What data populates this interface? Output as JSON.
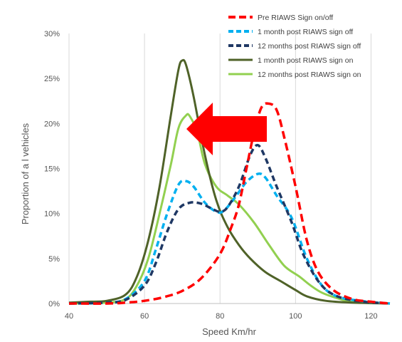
{
  "chart_data": {
    "type": "line",
    "title": "",
    "xlabel": "Speed Km/hr",
    "ylabel": "Proportion of a l vehicles",
    "xlim": [
      40,
      125
    ],
    "ylim": [
      0,
      30
    ],
    "x_ticks": [
      40,
      60,
      80,
      100,
      120
    ],
    "y_ticks": [
      0,
      5,
      10,
      15,
      20,
      25,
      30
    ],
    "y_tick_suffix": "%",
    "grid": "vertical",
    "legend_position": "top-right",
    "annotation": "red-arrow-pointing-left",
    "series": [
      {
        "name": "Pre RIAWS Sign on/off",
        "color": "#ff0000",
        "dash": "dashed",
        "points": [
          [
            40,
            0
          ],
          [
            50,
            0
          ],
          [
            55,
            0.1
          ],
          [
            60,
            0.3
          ],
          [
            65,
            0.7
          ],
          [
            70,
            1.4
          ],
          [
            75,
            2.8
          ],
          [
            80,
            5.5
          ],
          [
            83,
            8.5
          ],
          [
            85,
            11
          ],
          [
            87,
            15
          ],
          [
            89,
            19
          ],
          [
            91,
            21.8
          ],
          [
            93,
            22.2
          ],
          [
            95,
            21.5
          ],
          [
            97,
            18.5
          ],
          [
            100,
            13
          ],
          [
            103,
            7
          ],
          [
            106,
            3.5
          ],
          [
            110,
            1.5
          ],
          [
            115,
            0.5
          ],
          [
            120,
            0.2
          ],
          [
            125,
            0
          ]
        ]
      },
      {
        "name": "1 month post RIAWS sign off",
        "color": "#00b0f0",
        "dash": "dashed",
        "points": [
          [
            40,
            0
          ],
          [
            50,
            0.1
          ],
          [
            55,
            0.5
          ],
          [
            60,
            2.5
          ],
          [
            63,
            6
          ],
          [
            66,
            10
          ],
          [
            69,
            13.2
          ],
          [
            71,
            13.6
          ],
          [
            73,
            13
          ],
          [
            76,
            11.2
          ],
          [
            79,
            10.2
          ],
          [
            81,
            10.3
          ],
          [
            84,
            11.8
          ],
          [
            87,
            13.5
          ],
          [
            90,
            14.4
          ],
          [
            92,
            14
          ],
          [
            95,
            12
          ],
          [
            99,
            9.5
          ],
          [
            103,
            5
          ],
          [
            107,
            2
          ],
          [
            111,
            0.8
          ],
          [
            117,
            0.3
          ],
          [
            125,
            0
          ]
        ]
      },
      {
        "name": "12 months post RIAWS sign off",
        "color": "#1f3864",
        "dash": "dashed",
        "points": [
          [
            40,
            0
          ],
          [
            50,
            0.1
          ],
          [
            55,
            0.4
          ],
          [
            60,
            2
          ],
          [
            63,
            4.5
          ],
          [
            66,
            8
          ],
          [
            69,
            10.5
          ],
          [
            72,
            11.2
          ],
          [
            75,
            11.1
          ],
          [
            78,
            10.5
          ],
          [
            80,
            10.2
          ],
          [
            82,
            10.7
          ],
          [
            85,
            13
          ],
          [
            88,
            16.5
          ],
          [
            90,
            17.6
          ],
          [
            92,
            16.2
          ],
          [
            95,
            13
          ],
          [
            99,
            9
          ],
          [
            102,
            5.5
          ],
          [
            106,
            2.5
          ],
          [
            110,
            1
          ],
          [
            116,
            0.3
          ],
          [
            125,
            0
          ]
        ]
      },
      {
        "name": "1 month post RIAWS sign on",
        "color": "#4f6228",
        "dash": "solid",
        "points": [
          [
            40,
            0.1
          ],
          [
            45,
            0.2
          ],
          [
            50,
            0.3
          ],
          [
            55,
            1
          ],
          [
            58,
            3
          ],
          [
            61,
            7
          ],
          [
            64,
            13
          ],
          [
            67,
            21
          ],
          [
            69,
            26
          ],
          [
            70,
            27
          ],
          [
            71,
            26.5
          ],
          [
            73,
            23
          ],
          [
            76,
            16.5
          ],
          [
            79,
            11.5
          ],
          [
            82,
            8.5
          ],
          [
            85,
            6.5
          ],
          [
            88,
            5
          ],
          [
            92,
            3.5
          ],
          [
            96,
            2.5
          ],
          [
            100,
            1.5
          ],
          [
            103,
            0.8
          ],
          [
            108,
            0.3
          ],
          [
            115,
            0.1
          ],
          [
            125,
            0
          ]
        ]
      },
      {
        "name": "12 months post RIAWS sign on",
        "color": "#92d050",
        "dash": "solid",
        "points": [
          [
            40,
            0
          ],
          [
            50,
            0.1
          ],
          [
            55,
            0.5
          ],
          [
            58,
            2
          ],
          [
            61,
            5
          ],
          [
            64,
            10
          ],
          [
            67,
            15.5
          ],
          [
            69,
            19.5
          ],
          [
            71,
            20.9
          ],
          [
            72,
            20.8
          ],
          [
            74,
            19
          ],
          [
            76,
            15.5
          ],
          [
            79,
            13
          ],
          [
            82,
            12
          ],
          [
            85,
            11
          ],
          [
            89,
            9
          ],
          [
            93,
            6.5
          ],
          [
            97,
            4.2
          ],
          [
            101,
            3
          ],
          [
            104,
            2
          ],
          [
            107,
            1.2
          ],
          [
            111,
            0.6
          ],
          [
            115,
            0.2
          ],
          [
            125,
            0
          ]
        ]
      }
    ]
  }
}
